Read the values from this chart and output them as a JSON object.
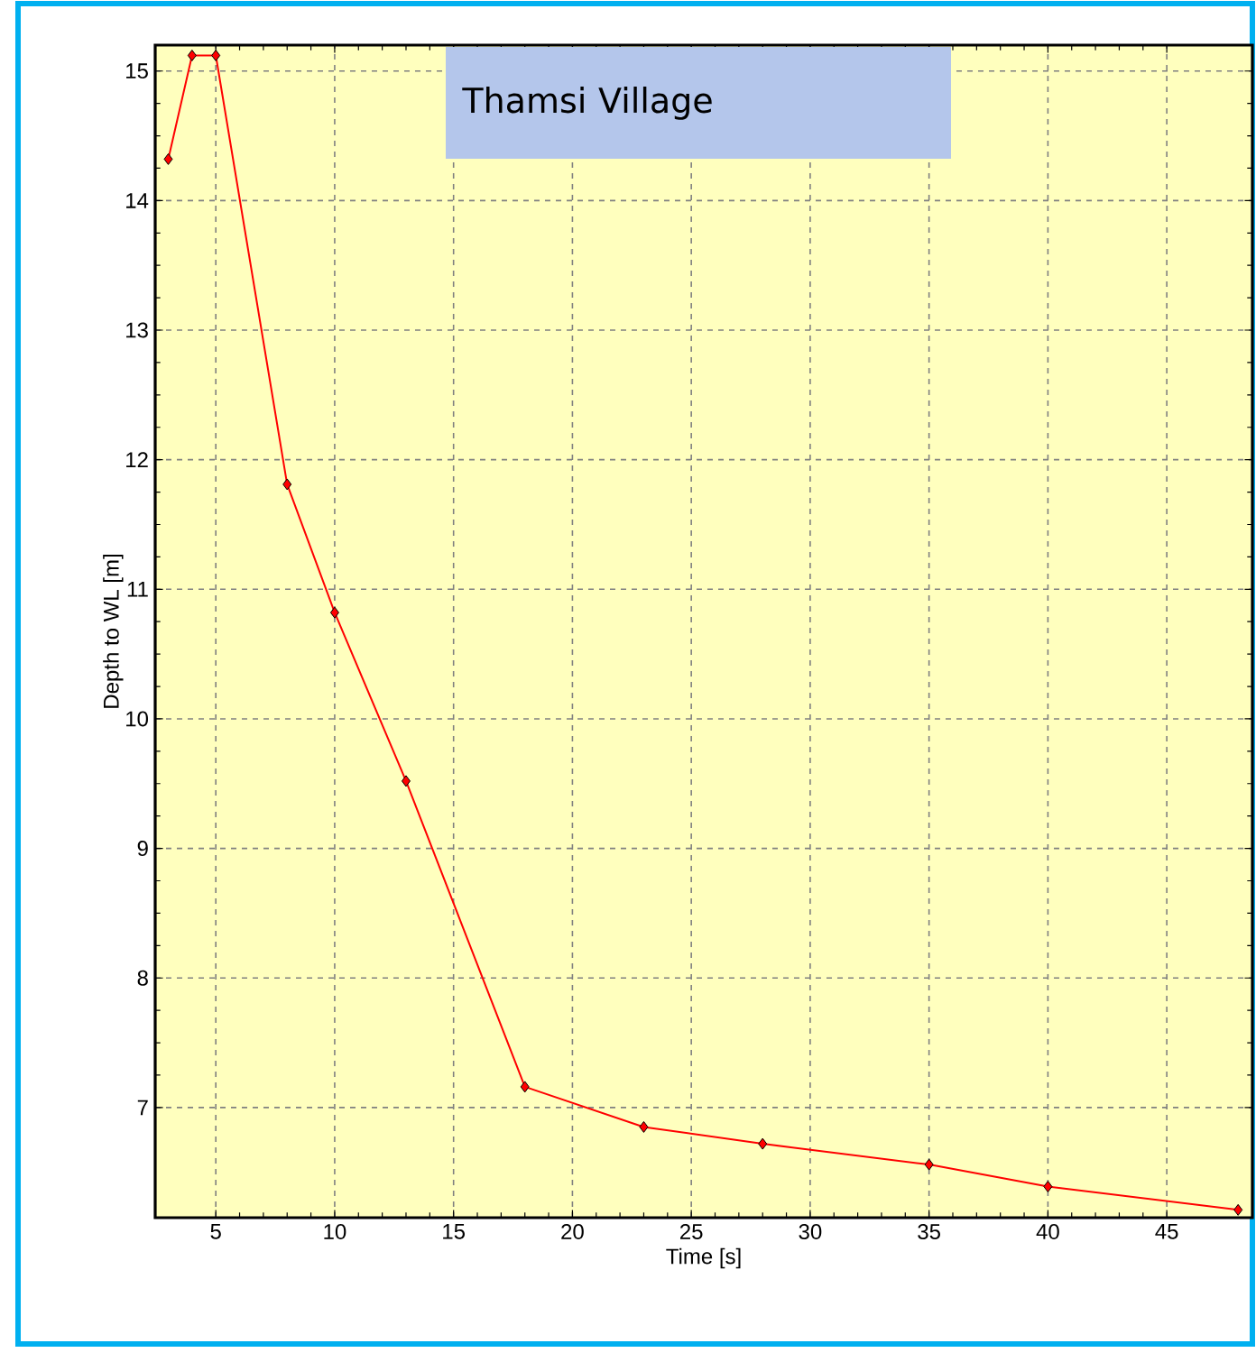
{
  "chart_data": {
    "type": "line",
    "title": "Thamsi Village",
    "xlabel": "Time [s]",
    "ylabel": "Depth to WL [m]",
    "x": [
      3,
      4,
      5,
      8,
      10,
      13,
      18,
      23,
      28,
      35,
      40,
      48
    ],
    "series": [
      {
        "color": "#ff0000",
        "values": [
          14.32,
          15.12,
          15.12,
          11.81,
          10.82,
          9.52,
          7.16,
          6.85,
          6.72,
          6.56,
          6.39,
          6.21
        ]
      }
    ],
    "xlim": [
      2.45,
      48.6
    ],
    "ylim": [
      6.15,
      15.2
    ],
    "xticks": [
      5,
      10,
      15,
      20,
      25,
      30,
      35,
      40,
      45
    ],
    "yticks": [
      7,
      8,
      9,
      10,
      11,
      12,
      13,
      14,
      15
    ],
    "grid": true,
    "marker": "diamond",
    "line_style": "solid"
  }
}
